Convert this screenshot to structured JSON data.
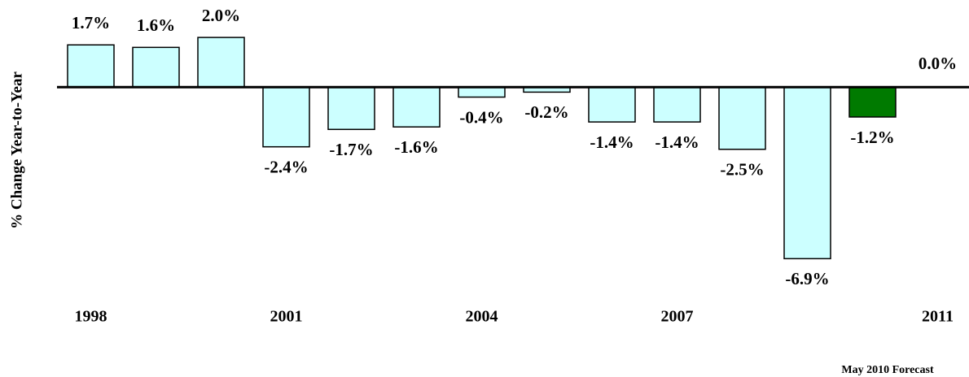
{
  "chart_data": {
    "type": "bar",
    "y_label": "% Change Year-to-Year",
    "note": "May 2010 Forecast",
    "categories": [
      "1998",
      null,
      null,
      "2001",
      null,
      null,
      "2004",
      null,
      null,
      "2007",
      null,
      null,
      null,
      "2011"
    ],
    "values": [
      1.7,
      1.6,
      2.0,
      -2.4,
      -1.7,
      -1.6,
      -0.4,
      -0.2,
      -1.4,
      -1.4,
      -2.5,
      -6.9,
      -1.2,
      0.0
    ],
    "value_labels": [
      "1.7%",
      "1.6%",
      "2.0%",
      "-2.4%",
      "-1.7%",
      "-1.6%",
      "-0.4%",
      "-0.2%",
      "-1.4%",
      "-1.4%",
      "-2.5%",
      "-6.9%",
      "-1.2%",
      "0.0%"
    ],
    "colors": [
      "#ccffff",
      "#ccffff",
      "#ccffff",
      "#ccffff",
      "#ccffff",
      "#ccffff",
      "#ccffff",
      "#ccffff",
      "#ccffff",
      "#ccffff",
      "#ccffff",
      "#ccffff",
      "#007a00",
      "#ccffff"
    ],
    "ylim": [
      -8,
      3
    ]
  }
}
